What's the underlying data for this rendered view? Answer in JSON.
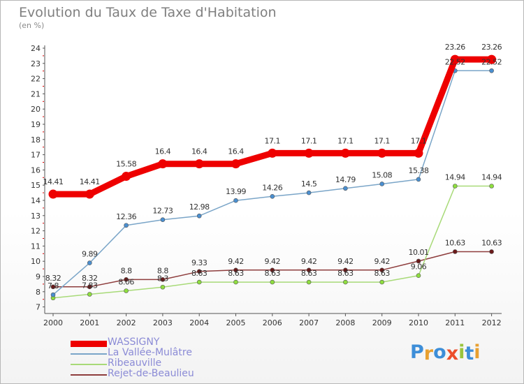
{
  "title": "Evolution du Taux de Taxe d'Habitation",
  "subtitle": "(en %)",
  "logo": {
    "text": "Proxiti",
    "letters": [
      "P",
      "r",
      "o",
      "x",
      "i",
      "t",
      "i"
    ],
    "colors": [
      "#3d8ed8",
      "#e8a030",
      "#3d8ed8",
      "#ec4e2b",
      "#9ac43c",
      "#3d8ed8",
      "#e8a030"
    ]
  },
  "chart_data": {
    "type": "line",
    "title": "Evolution du Taux de Taxe d'Habitation",
    "ylabel": "(en %)",
    "categories": [
      "2000",
      "2001",
      "2002",
      "2003",
      "2004",
      "2005",
      "2006",
      "2007",
      "2008",
      "2009",
      "2010",
      "2011",
      "2012"
    ],
    "ylim": [
      7,
      24
    ],
    "yticks": [
      "7",
      "8",
      "9",
      "10",
      "11",
      "12",
      "13",
      "14",
      "15",
      "16",
      "17",
      "18",
      "19",
      "20",
      "21",
      "22",
      "23",
      "24"
    ],
    "legend_position": "bottom-left",
    "series": [
      {
        "name": "WASSIGNY",
        "color": "#ee0000",
        "values": [
          14.41,
          14.41,
          15.58,
          16.4,
          16.4,
          16.4,
          17.1,
          17.1,
          17.1,
          17.1,
          17.1,
          23.26,
          23.26
        ],
        "labels": [
          "14.41",
          "14.41",
          "15.58",
          "16.4",
          "16.4",
          "16.4",
          "17.1",
          "17.1",
          "17.1",
          "17.1",
          "17.1",
          "23.26",
          "23.26"
        ]
      },
      {
        "name": "La Vallée-Mulâtre",
        "color": "#7aa5c8",
        "marker": "#4a8fd0",
        "values": [
          7.8,
          9.89,
          12.36,
          12.73,
          12.98,
          13.99,
          14.26,
          14.5,
          14.79,
          15.08,
          15.38,
          22.52,
          22.52
        ],
        "labels": [
          "7.8",
          "9.89",
          "12.36",
          "12.73",
          "12.98",
          "13.99",
          "14.26",
          "14.5",
          "14.79",
          "15.08",
          "15.38",
          "22.52",
          "22.52"
        ]
      },
      {
        "name": "Ribeauville",
        "color": "#a8da78",
        "marker": "#8ede3e",
        "values": [
          7.59,
          7.83,
          8.06,
          8.3,
          8.63,
          8.63,
          8.63,
          8.63,
          8.63,
          8.63,
          9.06,
          14.94,
          14.94
        ],
        "labels": [
          "",
          "7.83",
          "8.06",
          "8.3",
          "8.63",
          "8.63",
          "8.63",
          "8.63",
          "8.63",
          "8.63",
          "9.06",
          "14.94",
          "14.94"
        ]
      },
      {
        "name": "Rejet-de-Beaulieu",
        "color": "#8e3d3d",
        "marker": "#6b1a1a",
        "values": [
          8.32,
          8.32,
          8.8,
          8.8,
          9.33,
          9.42,
          9.42,
          9.42,
          9.42,
          9.42,
          10.01,
          10.63,
          10.63
        ],
        "labels": [
          "8.32",
          "8.32",
          "8.8",
          "8.8",
          "9.33",
          "9.42",
          "9.42",
          "9.42",
          "9.42",
          "9.42",
          "10.01",
          "10.63",
          "10.63"
        ]
      }
    ]
  }
}
